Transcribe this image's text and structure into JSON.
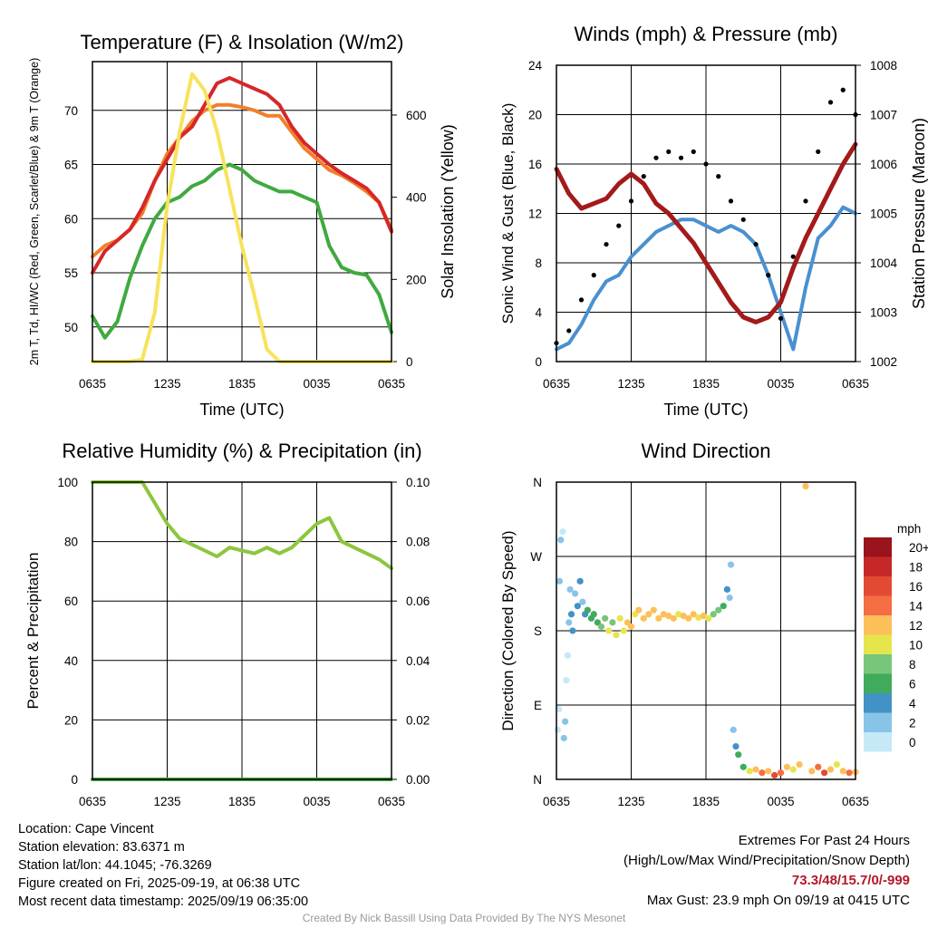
{
  "chart_data": [
    {
      "type": "line",
      "title": "Temperature (F) & Insolation (W/m2)",
      "xlabel": "Time (UTC)",
      "ylabel": "2m T, Td, HI/WC (Red, Green, Scarlet/Blue) & 9m T (Orange)",
      "ylabel_right": "Solar Insolation (Yellow)",
      "x_ticks": [
        "0635",
        "1235",
        "1835",
        "0035",
        "0635"
      ],
      "ylim": [
        46.8,
        74.5
      ],
      "y_ticks": [
        50,
        55,
        60,
        65,
        70
      ],
      "y2lim": [
        0,
        730
      ],
      "y2_ticks": [
        0,
        200,
        400,
        600
      ],
      "x_hours": [
        0,
        1,
        2,
        3,
        4,
        5,
        6,
        7,
        8,
        9,
        10,
        11,
        12,
        13,
        14,
        15,
        16,
        17,
        18,
        19,
        20,
        21,
        22,
        23,
        24
      ],
      "series": [
        {
          "name": "9m T",
          "color": "#f1802a",
          "axis": "left",
          "values": [
            56.5,
            57.5,
            58.0,
            59.0,
            60.5,
            63.5,
            66.0,
            67.5,
            69.0,
            70.0,
            70.5,
            70.5,
            70.3,
            70.0,
            69.5,
            69.5,
            68.0,
            66.5,
            65.5,
            64.5,
            64.0,
            63.3,
            62.5,
            61.5,
            59.0
          ]
        },
        {
          "name": "2m T",
          "color": "#d62728",
          "axis": "left",
          "values": [
            55.0,
            57.0,
            58.0,
            59.0,
            61.0,
            63.5,
            65.5,
            67.5,
            68.5,
            70.5,
            72.5,
            73.0,
            72.5,
            72.0,
            71.5,
            70.5,
            68.5,
            67.0,
            66.0,
            65.0,
            64.2,
            63.5,
            62.8,
            61.5,
            58.8
          ]
        },
        {
          "name": "2m Td",
          "color": "#3faa3f",
          "axis": "left",
          "values": [
            51.0,
            49.0,
            50.5,
            54.5,
            57.5,
            60.0,
            61.5,
            62.0,
            63.0,
            63.5,
            64.5,
            65.0,
            64.5,
            63.5,
            63.0,
            62.5,
            62.5,
            62.0,
            61.5,
            57.5,
            55.5,
            55.0,
            54.8,
            53.0,
            49.5
          ]
        },
        {
          "name": "Solar Insolation",
          "color": "#f7e35c",
          "axis": "right",
          "values": [
            0,
            0,
            0,
            0,
            5,
            120,
            380,
            560,
            700,
            660,
            560,
            420,
            280,
            160,
            30,
            0,
            0,
            0,
            0,
            0,
            0,
            0,
            0,
            0,
            0
          ]
        }
      ]
    },
    {
      "type": "line",
      "title": "Winds (mph) & Pressure (mb)",
      "xlabel": "Time (UTC)",
      "ylabel": "Sonic Wind & Gust (Blue, Black)",
      "ylabel_right": "Station Pressure (Maroon)",
      "x_ticks": [
        "0635",
        "1235",
        "1835",
        "0035",
        "0635"
      ],
      "ylim": [
        0,
        24
      ],
      "y_ticks": [
        0,
        4,
        8,
        12,
        16,
        20,
        24
      ],
      "y2lim": [
        1002,
        1008
      ],
      "y2_ticks": [
        1002,
        1003,
        1004,
        1005,
        1006,
        1007,
        1008
      ],
      "x_hours": [
        0,
        1,
        2,
        3,
        4,
        5,
        6,
        7,
        8,
        9,
        10,
        11,
        12,
        13,
        14,
        15,
        16,
        17,
        18,
        19,
        20,
        21,
        22,
        23,
        24
      ],
      "series": [
        {
          "name": "Sonic Wind",
          "color": "#4a90d0",
          "axis": "left",
          "values": [
            1.0,
            1.5,
            3.0,
            5.0,
            6.5,
            7.0,
            8.5,
            9.5,
            10.5,
            11.0,
            11.5,
            11.5,
            11.0,
            10.5,
            11.0,
            10.5,
            9.5,
            7.0,
            4.0,
            1.0,
            6.0,
            10.0,
            11.0,
            12.5,
            12.0
          ]
        },
        {
          "name": "Gust",
          "color": "#000000",
          "axis": "left",
          "values": [
            1.5,
            2.5,
            5.0,
            7.0,
            9.5,
            11.0,
            13.0,
            15.0,
            16.5,
            17.0,
            16.5,
            17.0,
            16.0,
            15.0,
            13.0,
            11.5,
            9.5,
            7.0,
            3.5,
            8.5,
            13.0,
            17.0,
            21.0,
            22.0,
            20.0
          ]
        },
        {
          "name": "Station Pressure",
          "color": "#a31a1a",
          "axis": "right",
          "values": [
            1005.9,
            1005.4,
            1005.1,
            1005.2,
            1005.3,
            1005.6,
            1005.8,
            1005.6,
            1005.2,
            1005.0,
            1004.7,
            1004.4,
            1004.0,
            1003.6,
            1003.2,
            1002.9,
            1002.8,
            1002.9,
            1003.2,
            1003.9,
            1004.5,
            1005.0,
            1005.5,
            1006.0,
            1006.4
          ]
        }
      ]
    },
    {
      "type": "line",
      "title": "Relative Humidity (%) & Precipitation (in)",
      "xlabel": "",
      "ylabel": "Percent & Precipitation",
      "x_ticks": [
        "0635",
        "1235",
        "1835",
        "0035",
        "0635"
      ],
      "ylim": [
        0,
        100
      ],
      "y_ticks": [
        0,
        20,
        40,
        60,
        80,
        100
      ],
      "y2lim": [
        0,
        0.1
      ],
      "y2_ticks": [
        "0.00",
        "0.02",
        "0.04",
        "0.06",
        "0.08",
        "0.10"
      ],
      "x_hours": [
        0,
        1,
        2,
        3,
        4,
        5,
        6,
        7,
        8,
        9,
        10,
        11,
        12,
        13,
        14,
        15,
        16,
        17,
        18,
        19,
        20,
        21,
        22,
        23,
        24
      ],
      "series": [
        {
          "name": "Relative Humidity",
          "color": "#8cc63f",
          "axis": "left",
          "values": [
            100,
            100,
            100,
            100,
            100,
            93,
            86,
            81,
            79,
            77,
            75,
            78,
            77,
            76,
            78,
            76,
            78,
            82,
            86,
            88,
            80,
            78,
            76,
            74,
            71
          ]
        },
        {
          "name": "Precipitation",
          "color": "#3faa3f",
          "axis": "right",
          "values": [
            0,
            0,
            0,
            0,
            0,
            0,
            0,
            0,
            0,
            0,
            0,
            0,
            0,
            0,
            0,
            0,
            0,
            0,
            0,
            0,
            0,
            0,
            0,
            0,
            0
          ]
        }
      ]
    },
    {
      "type": "scatter",
      "title": "Wind Direction",
      "xlabel": "",
      "ylabel": "Direction (Colored By Speed)",
      "x_ticks": [
        "0635",
        "1235",
        "1835",
        "0035",
        "0635"
      ],
      "y_ticks": [
        "N",
        "E",
        "S",
        "W",
        "N"
      ],
      "ylim": [
        0,
        360
      ],
      "legend_title": "mph",
      "legend_labels": [
        "0",
        "2",
        "4",
        "6",
        "8",
        "10",
        "12",
        "14",
        "16",
        "18",
        "20+"
      ],
      "legend_colors": [
        "#c6e9f7",
        "#88c4e8",
        "#4292c6",
        "#41ab5d",
        "#78c679",
        "#e6e64c",
        "#fdbf5a",
        "#f46d43",
        "#e34a33",
        "#c62828",
        "#99141c"
      ],
      "points": [
        {
          "hour": 0.1,
          "dir": 60,
          "speed": 1
        },
        {
          "hour": 0.2,
          "dir": 85,
          "speed": 1
        },
        {
          "hour": 0.25,
          "dir": 240,
          "speed": 2
        },
        {
          "hour": 0.35,
          "dir": 290,
          "speed": 2
        },
        {
          "hour": 0.5,
          "dir": 300,
          "speed": 1
        },
        {
          "hour": 0.6,
          "dir": 50,
          "speed": 2
        },
        {
          "hour": 0.7,
          "dir": 70,
          "speed": 3
        },
        {
          "hour": 0.8,
          "dir": 120,
          "speed": 1
        },
        {
          "hour": 0.9,
          "dir": 150,
          "speed": 1
        },
        {
          "hour": 1.0,
          "dir": 190,
          "speed": 3
        },
        {
          "hour": 1.1,
          "dir": 230,
          "speed": 3
        },
        {
          "hour": 1.2,
          "dir": 200,
          "speed": 4
        },
        {
          "hour": 1.3,
          "dir": 180,
          "speed": 4
        },
        {
          "hour": 1.5,
          "dir": 225,
          "speed": 3
        },
        {
          "hour": 1.7,
          "dir": 210,
          "speed": 4
        },
        {
          "hour": 1.9,
          "dir": 240,
          "speed": 4
        },
        {
          "hour": 2.1,
          "dir": 215,
          "speed": 3
        },
        {
          "hour": 2.3,
          "dir": 200,
          "speed": 5
        },
        {
          "hour": 2.5,
          "dir": 205,
          "speed": 6
        },
        {
          "hour": 2.8,
          "dir": 195,
          "speed": 6
        },
        {
          "hour": 3.0,
          "dir": 200,
          "speed": 6
        },
        {
          "hour": 3.3,
          "dir": 190,
          "speed": 7
        },
        {
          "hour": 3.6,
          "dir": 185,
          "speed": 9
        },
        {
          "hour": 3.9,
          "dir": 195,
          "speed": 8
        },
        {
          "hour": 4.2,
          "dir": 180,
          "speed": 10
        },
        {
          "hour": 4.5,
          "dir": 190,
          "speed": 9
        },
        {
          "hour": 4.8,
          "dir": 175,
          "speed": 11
        },
        {
          "hour": 5.1,
          "dir": 195,
          "speed": 10
        },
        {
          "hour": 5.4,
          "dir": 180,
          "speed": 11
        },
        {
          "hour": 5.7,
          "dir": 190,
          "speed": 12
        },
        {
          "hour": 6.0,
          "dir": 185,
          "speed": 13
        },
        {
          "hour": 6.3,
          "dir": 200,
          "speed": 11
        },
        {
          "hour": 6.6,
          "dir": 205,
          "speed": 12
        },
        {
          "hour": 7.0,
          "dir": 195,
          "speed": 13
        },
        {
          "hour": 7.4,
          "dir": 200,
          "speed": 12
        },
        {
          "hour": 7.8,
          "dir": 205,
          "speed": 13
        },
        {
          "hour": 8.2,
          "dir": 195,
          "speed": 12
        },
        {
          "hour": 8.6,
          "dir": 200,
          "speed": 12
        },
        {
          "hour": 9.0,
          "dir": 198,
          "speed": 13
        },
        {
          "hour": 9.4,
          "dir": 195,
          "speed": 12
        },
        {
          "hour": 9.8,
          "dir": 200,
          "speed": 11
        },
        {
          "hour": 10.2,
          "dir": 198,
          "speed": 12
        },
        {
          "hour": 10.6,
          "dir": 195,
          "speed": 13
        },
        {
          "hour": 11.0,
          "dir": 200,
          "speed": 12
        },
        {
          "hour": 11.4,
          "dir": 196,
          "speed": 11
        },
        {
          "hour": 11.8,
          "dir": 198,
          "speed": 12
        },
        {
          "hour": 12.2,
          "dir": 195,
          "speed": 10
        },
        {
          "hour": 12.6,
          "dir": 200,
          "speed": 9
        },
        {
          "hour": 13.0,
          "dir": 205,
          "speed": 8
        },
        {
          "hour": 13.4,
          "dir": 210,
          "speed": 6
        },
        {
          "hour": 13.7,
          "dir": 230,
          "speed": 4
        },
        {
          "hour": 13.9,
          "dir": 220,
          "speed": 3
        },
        {
          "hour": 14.0,
          "dir": 260,
          "speed": 2
        },
        {
          "hour": 14.2,
          "dir": 60,
          "speed": 3
        },
        {
          "hour": 14.4,
          "dir": 40,
          "speed": 4
        },
        {
          "hour": 14.6,
          "dir": 30,
          "speed": 6
        },
        {
          "hour": 15.0,
          "dir": 15,
          "speed": 7
        },
        {
          "hour": 15.5,
          "dir": 10,
          "speed": 10
        },
        {
          "hour": 16.0,
          "dir": 12,
          "speed": 12
        },
        {
          "hour": 16.5,
          "dir": 8,
          "speed": 14
        },
        {
          "hour": 17.0,
          "dir": 10,
          "speed": 13
        },
        {
          "hour": 17.5,
          "dir": 5,
          "speed": 16
        },
        {
          "hour": 18.0,
          "dir": 8,
          "speed": 14
        },
        {
          "hour": 18.5,
          "dir": 15,
          "speed": 12
        },
        {
          "hour": 19.0,
          "dir": 12,
          "speed": 11
        },
        {
          "hour": 19.5,
          "dir": 18,
          "speed": 13
        },
        {
          "hour": 20.0,
          "dir": 355,
          "speed": 13
        },
        {
          "hour": 20.5,
          "dir": 10,
          "speed": 12
        },
        {
          "hour": 21.0,
          "dir": 15,
          "speed": 14
        },
        {
          "hour": 21.5,
          "dir": 8,
          "speed": 16
        },
        {
          "hour": 22.0,
          "dir": 12,
          "speed": 12
        },
        {
          "hour": 22.5,
          "dir": 18,
          "speed": 11
        },
        {
          "hour": 23.0,
          "dir": 10,
          "speed": 13
        },
        {
          "hour": 23.5,
          "dir": 8,
          "speed": 14
        },
        {
          "hour": 24.0,
          "dir": 9,
          "speed": 12
        }
      ]
    }
  ],
  "footer": {
    "location": "Location: Cape Vincent",
    "elevation": "Station elevation: 83.6371 m",
    "latlon": "Station lat/lon: 44.1045; -76.3269",
    "created": "Figure created on Fri, 2025-09-19, at 06:38 UTC",
    "recent": "Most recent data timestamp: 2025/09/19 06:35:00",
    "extremes_title": "Extremes For Past 24 Hours",
    "extremes_subtitle": "(High/Low/Max Wind/Precipitation/Snow Depth)",
    "extremes_values": "73.3/48/15.7/0/-999",
    "max_gust": "Max Gust: 23.9 mph On 09/19 at 0415 UTC",
    "credit": "Created By Nick Bassill Using Data Provided By The NYS Mesonet"
  }
}
